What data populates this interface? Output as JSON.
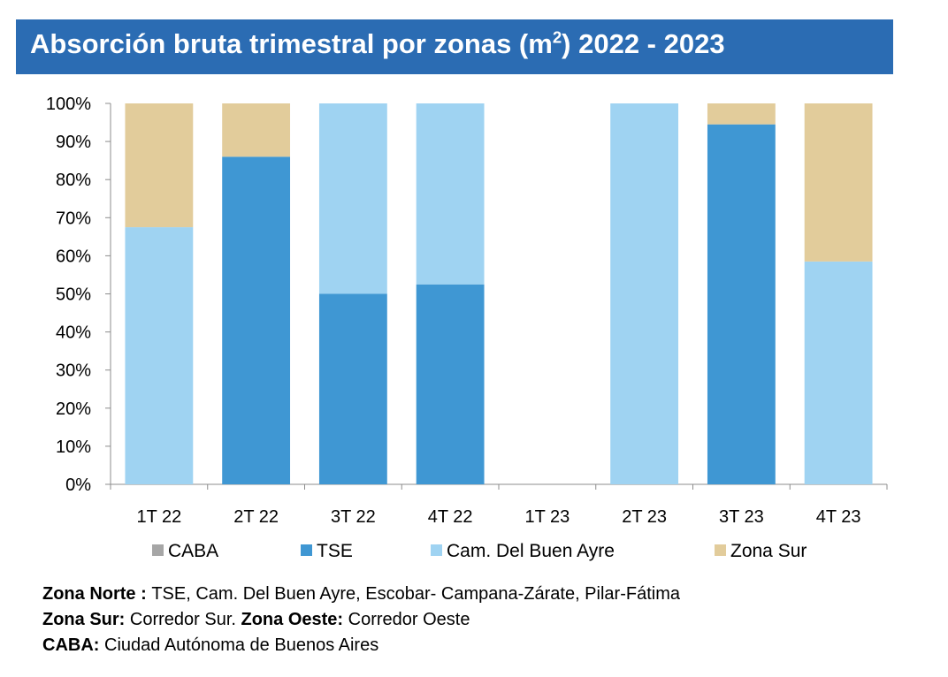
{
  "title": {
    "main": "Absorción bruta trimestral por zonas (m",
    "sup": "2",
    "tail": ") 2022 - 2023"
  },
  "chart_data": {
    "type": "bar",
    "stacked": true,
    "categories": [
      "1T 22",
      "2T 22",
      "3T 22",
      "4T 22",
      "1T 23",
      "2T 23",
      "3T 23",
      "4T 23"
    ],
    "series": [
      {
        "name": "CABA",
        "color": "#a6a6a6",
        "values": [
          0,
          0,
          0,
          0,
          0,
          0,
          0,
          0
        ]
      },
      {
        "name": "TSE",
        "color": "#3f97d3",
        "values": [
          0,
          86,
          50,
          52.5,
          0,
          0,
          94.5,
          0
        ]
      },
      {
        "name": "Cam. Del Buen Ayre",
        "color": "#9fd3f2",
        "values": [
          67.5,
          0,
          50,
          47.5,
          0,
          100,
          0,
          58.5
        ]
      },
      {
        "name": "Zona Sur",
        "color": "#e2cc9b",
        "values": [
          32.5,
          14,
          0,
          0,
          0,
          0,
          5.5,
          41.5
        ]
      }
    ],
    "y_ticks": [
      "0%",
      "10%",
      "20%",
      "30%",
      "40%",
      "50%",
      "60%",
      "70%",
      "80%",
      "90%",
      "100%"
    ],
    "ylim": [
      0,
      100
    ],
    "xlabel": "",
    "ylabel": "",
    "grid": false,
    "legend_position": "bottom"
  },
  "notes": [
    {
      "label": "Zona Norte : ",
      "text": "TSE, Cam. Del Buen Ayre, Escobar- Campana-Zárate, Pilar-Fátima"
    },
    {
      "label": "Zona Sur: ",
      "text": "Corredor Sur.  ",
      "label2": "Zona Oeste: ",
      "text2": "Corredor Oeste"
    },
    {
      "label": "CABA: ",
      "text": "Ciudad Autónoma de Buenos Aires"
    }
  ]
}
